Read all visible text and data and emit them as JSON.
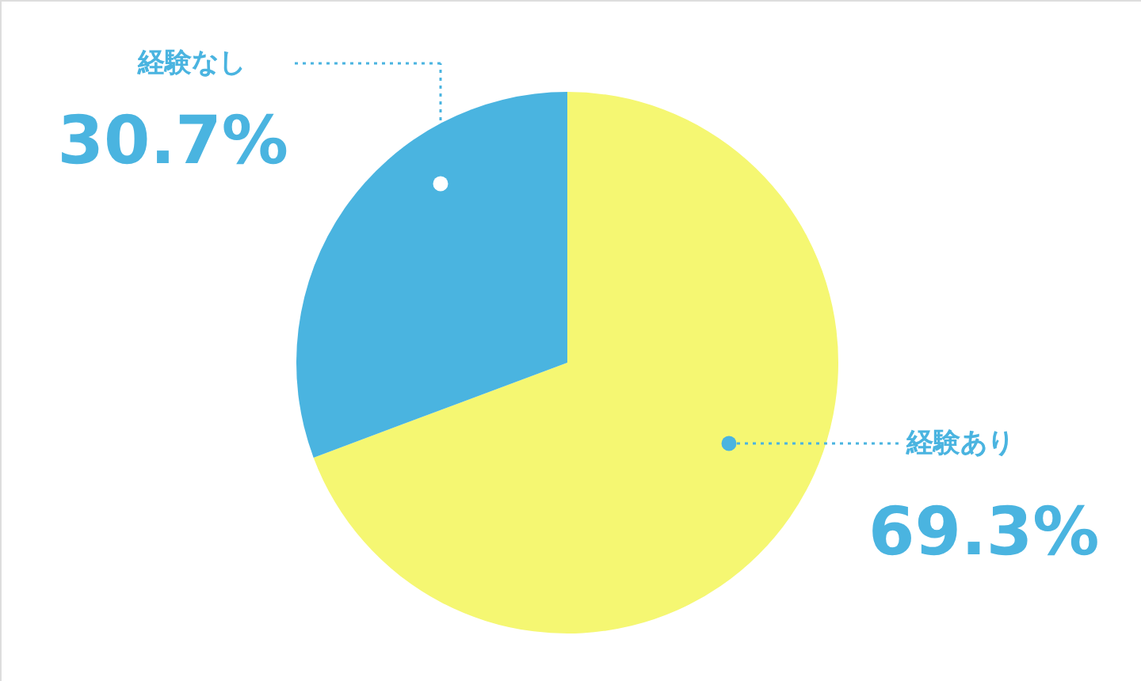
{
  "chart_data": {
    "type": "pie",
    "categories": [
      "経験あり",
      "経験なし"
    ],
    "values": [
      69.3,
      30.7
    ],
    "colors": [
      "#f5f772",
      "#4ab4e0"
    ],
    "value_labels": [
      "69.3%",
      "30.7%"
    ]
  }
}
